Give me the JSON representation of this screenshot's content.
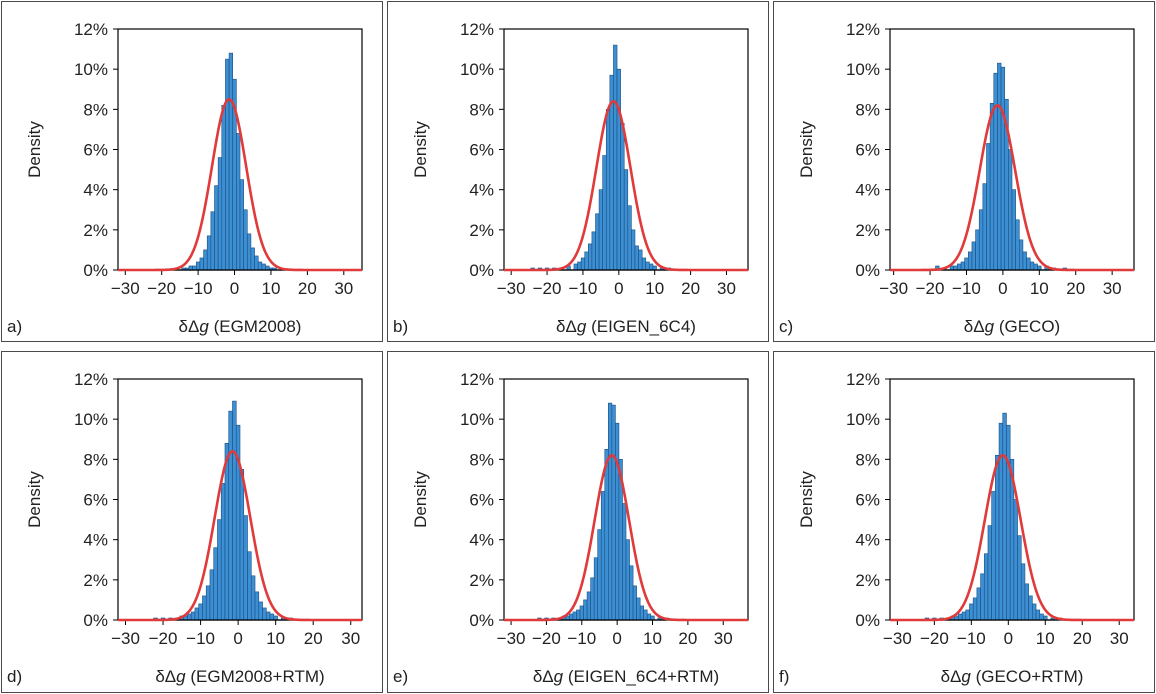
{
  "chart_data": [
    {
      "type": "bar",
      "panel_label": "a)",
      "xlabel_prefix": "δΔ",
      "xlabel_var": "g",
      "xlabel_suffix": " (EGM2008)",
      "ylabel": "Density",
      "xlim": [
        -32,
        35
      ],
      "ylim": [
        0,
        0.12
      ],
      "x_ticks": [
        "−30",
        "−20",
        "−10",
        "0",
        "10",
        "20",
        "30"
      ],
      "x_tick_values": [
        -30,
        -20,
        -10,
        0,
        10,
        20,
        30
      ],
      "y_ticks": [
        "0%",
        "2%",
        "4%",
        "6%",
        "8%",
        "10%",
        "12%"
      ],
      "y_tick_values": [
        0,
        0.02,
        0.04,
        0.06,
        0.08,
        0.1,
        0.12
      ],
      "bin_width": 1,
      "bins": [
        {
          "x": -14,
          "y": 0.001
        },
        {
          "x": -13,
          "y": 0.001
        },
        {
          "x": -12,
          "y": 0.002
        },
        {
          "x": -11,
          "y": 0.002
        },
        {
          "x": -10,
          "y": 0.004
        },
        {
          "x": -9,
          "y": 0.006
        },
        {
          "x": -8,
          "y": 0.01
        },
        {
          "x": -7,
          "y": 0.017
        },
        {
          "x": -6,
          "y": 0.029
        },
        {
          "x": -5,
          "y": 0.042
        },
        {
          "x": -4,
          "y": 0.056
        },
        {
          "x": -3,
          "y": 0.082
        },
        {
          "x": -2,
          "y": 0.105
        },
        {
          "x": -1,
          "y": 0.108
        },
        {
          "x": 0,
          "y": 0.095
        },
        {
          "x": 1,
          "y": 0.068
        },
        {
          "x": 2,
          "y": 0.045
        },
        {
          "x": 3,
          "y": 0.03
        },
        {
          "x": 4,
          "y": 0.018
        },
        {
          "x": 5,
          "y": 0.011
        },
        {
          "x": 6,
          "y": 0.007
        },
        {
          "x": 7,
          "y": 0.004
        },
        {
          "x": 8,
          "y": 0.003
        },
        {
          "x": 9,
          "y": 0.002
        },
        {
          "x": 10,
          "y": 0.001
        },
        {
          "x": 11,
          "y": 0.001
        }
      ],
      "fit": {
        "type": "normal",
        "mean": -1.5,
        "peak": 0.085
      }
    },
    {
      "type": "bar",
      "panel_label": "b)",
      "xlabel_prefix": "δΔ",
      "xlabel_var": "g",
      "xlabel_suffix": " (EIGEN_6C4)",
      "ylabel": "Density",
      "xlim": [
        -32,
        36
      ],
      "ylim": [
        0,
        0.12
      ],
      "x_ticks": [
        "−30",
        "−20",
        "−10",
        "0",
        "10",
        "20",
        "30"
      ],
      "x_tick_values": [
        -30,
        -20,
        -10,
        0,
        10,
        20,
        30
      ],
      "y_ticks": [
        "0%",
        "2%",
        "4%",
        "6%",
        "8%",
        "10%",
        "12%"
      ],
      "y_tick_values": [
        0,
        0.02,
        0.04,
        0.06,
        0.08,
        0.1,
        0.12
      ],
      "bin_width": 1,
      "bins": [
        {
          "x": -24,
          "y": 0.001
        },
        {
          "x": -22,
          "y": 0.001
        },
        {
          "x": -20,
          "y": 0.001
        },
        {
          "x": -18,
          "y": 0.001
        },
        {
          "x": -16,
          "y": 0.001
        },
        {
          "x": -14,
          "y": 0.002
        },
        {
          "x": -12,
          "y": 0.003
        },
        {
          "x": -11,
          "y": 0.004
        },
        {
          "x": -10,
          "y": 0.006
        },
        {
          "x": -9,
          "y": 0.009
        },
        {
          "x": -8,
          "y": 0.013
        },
        {
          "x": -7,
          "y": 0.019
        },
        {
          "x": -6,
          "y": 0.028
        },
        {
          "x": -5,
          "y": 0.04
        },
        {
          "x": -4,
          "y": 0.057
        },
        {
          "x": -3,
          "y": 0.08
        },
        {
          "x": -2,
          "y": 0.097
        },
        {
          "x": -1,
          "y": 0.112
        },
        {
          "x": 0,
          "y": 0.1
        },
        {
          "x": 1,
          "y": 0.073
        },
        {
          "x": 2,
          "y": 0.05
        },
        {
          "x": 3,
          "y": 0.032
        },
        {
          "x": 4,
          "y": 0.02
        },
        {
          "x": 5,
          "y": 0.012
        },
        {
          "x": 6,
          "y": 0.01
        },
        {
          "x": 7,
          "y": 0.006
        },
        {
          "x": 8,
          "y": 0.004
        },
        {
          "x": 9,
          "y": 0.003
        },
        {
          "x": 10,
          "y": 0.002
        },
        {
          "x": 12,
          "y": 0.001
        },
        {
          "x": 14,
          "y": 0.001
        }
      ],
      "fit": {
        "type": "normal",
        "mean": -1.5,
        "peak": 0.084
      }
    },
    {
      "type": "bar",
      "panel_label": "c)",
      "xlabel_prefix": "δΔ",
      "xlabel_var": "g",
      "xlabel_suffix": " (GECO)",
      "ylabel": "Density",
      "xlim": [
        -31,
        36
      ],
      "ylim": [
        0,
        0.12
      ],
      "x_ticks": [
        "−30",
        "−20",
        "−10",
        "0",
        "10",
        "20",
        "30"
      ],
      "x_tick_values": [
        -30,
        -20,
        -10,
        0,
        10,
        20,
        30
      ],
      "y_ticks": [
        "0%",
        "2%",
        "4%",
        "6%",
        "8%",
        "10%",
        "12%"
      ],
      "y_tick_values": [
        0,
        0.02,
        0.04,
        0.06,
        0.08,
        0.1,
        0.12
      ],
      "bin_width": 1,
      "bins": [
        {
          "x": -18,
          "y": 0.002
        },
        {
          "x": -16,
          "y": 0.001
        },
        {
          "x": -14,
          "y": 0.002
        },
        {
          "x": -13,
          "y": 0.002
        },
        {
          "x": -12,
          "y": 0.003
        },
        {
          "x": -11,
          "y": 0.004
        },
        {
          "x": -10,
          "y": 0.006
        },
        {
          "x": -9,
          "y": 0.009
        },
        {
          "x": -8,
          "y": 0.014
        },
        {
          "x": -7,
          "y": 0.02
        },
        {
          "x": -6,
          "y": 0.03
        },
        {
          "x": -5,
          "y": 0.043
        },
        {
          "x": -4,
          "y": 0.063
        },
        {
          "x": -3,
          "y": 0.083
        },
        {
          "x": -2,
          "y": 0.098
        },
        {
          "x": -1,
          "y": 0.103
        },
        {
          "x": 0,
          "y": 0.101
        },
        {
          "x": 1,
          "y": 0.085
        },
        {
          "x": 2,
          "y": 0.06
        },
        {
          "x": 3,
          "y": 0.04
        },
        {
          "x": 4,
          "y": 0.025
        },
        {
          "x": 5,
          "y": 0.015
        },
        {
          "x": 6,
          "y": 0.009
        },
        {
          "x": 7,
          "y": 0.006
        },
        {
          "x": 8,
          "y": 0.004
        },
        {
          "x": 9,
          "y": 0.003
        },
        {
          "x": 10,
          "y": 0.002
        },
        {
          "x": 12,
          "y": 0.002
        },
        {
          "x": 14,
          "y": 0.001
        },
        {
          "x": 17,
          "y": 0.001
        }
      ],
      "fit": {
        "type": "normal",
        "mean": -1.5,
        "peak": 0.082
      }
    },
    {
      "type": "bar",
      "panel_label": "d)",
      "xlabel_prefix": "δΔ",
      "xlabel_var": "g",
      "xlabel_suffix": " (EGM2008+RTM)",
      "ylabel": "Density",
      "xlim": [
        -32,
        33
      ],
      "ylim": [
        0,
        0.12
      ],
      "x_ticks": [
        "−30",
        "−20",
        "−10",
        "0",
        "10",
        "20",
        "30"
      ],
      "x_tick_values": [
        -30,
        -20,
        -10,
        0,
        10,
        20,
        30
      ],
      "y_ticks": [
        "0%",
        "2%",
        "4%",
        "6%",
        "8%",
        "10%",
        "12%"
      ],
      "y_tick_values": [
        0,
        0.02,
        0.04,
        0.06,
        0.08,
        0.1,
        0.12
      ],
      "bin_width": 1,
      "bins": [
        {
          "x": -22,
          "y": 0.001
        },
        {
          "x": -20,
          "y": 0.001
        },
        {
          "x": -18,
          "y": 0.001
        },
        {
          "x": -16,
          "y": 0.001
        },
        {
          "x": -15,
          "y": 0.002
        },
        {
          "x": -14,
          "y": 0.002
        },
        {
          "x": -13,
          "y": 0.003
        },
        {
          "x": -12,
          "y": 0.004
        },
        {
          "x": -11,
          "y": 0.006
        },
        {
          "x": -10,
          "y": 0.008
        },
        {
          "x": -9,
          "y": 0.012
        },
        {
          "x": -8,
          "y": 0.017
        },
        {
          "x": -7,
          "y": 0.025
        },
        {
          "x": -6,
          "y": 0.036
        },
        {
          "x": -5,
          "y": 0.05
        },
        {
          "x": -4,
          "y": 0.068
        },
        {
          "x": -3,
          "y": 0.088
        },
        {
          "x": -2,
          "y": 0.104
        },
        {
          "x": -1,
          "y": 0.109
        },
        {
          "x": 0,
          "y": 0.097
        },
        {
          "x": 1,
          "y": 0.075
        },
        {
          "x": 2,
          "y": 0.052
        },
        {
          "x": 3,
          "y": 0.034
        },
        {
          "x": 4,
          "y": 0.022
        },
        {
          "x": 5,
          "y": 0.014
        },
        {
          "x": 6,
          "y": 0.009
        },
        {
          "x": 7,
          "y": 0.006
        },
        {
          "x": 8,
          "y": 0.004
        },
        {
          "x": 9,
          "y": 0.003
        },
        {
          "x": 10,
          "y": 0.002
        },
        {
          "x": 12,
          "y": 0.001
        },
        {
          "x": 14,
          "y": 0.001
        }
      ],
      "fit": {
        "type": "normal",
        "mean": -1.5,
        "peak": 0.084
      }
    },
    {
      "type": "bar",
      "panel_label": "e)",
      "xlabel_prefix": "δΔ",
      "xlabel_var": "g",
      "xlabel_suffix": " (EIGEN_6C4+RTM)",
      "ylabel": "Density",
      "xlim": [
        -32,
        37
      ],
      "ylim": [
        0,
        0.12
      ],
      "x_ticks": [
        "−30",
        "−20",
        "−10",
        "0",
        "10",
        "20",
        "30"
      ],
      "x_tick_values": [
        -30,
        -20,
        -10,
        0,
        10,
        20,
        30
      ],
      "y_ticks": [
        "0%",
        "2%",
        "4%",
        "6%",
        "8%",
        "10%",
        "12%"
      ],
      "y_tick_values": [
        0,
        0.02,
        0.04,
        0.06,
        0.08,
        0.1,
        0.12
      ],
      "bin_width": 1,
      "bins": [
        {
          "x": -22,
          "y": 0.001
        },
        {
          "x": -20,
          "y": 0.001
        },
        {
          "x": -18,
          "y": 0.001
        },
        {
          "x": -16,
          "y": 0.001
        },
        {
          "x": -15,
          "y": 0.002
        },
        {
          "x": -14,
          "y": 0.002
        },
        {
          "x": -13,
          "y": 0.003
        },
        {
          "x": -12,
          "y": 0.004
        },
        {
          "x": -11,
          "y": 0.005
        },
        {
          "x": -10,
          "y": 0.007
        },
        {
          "x": -9,
          "y": 0.01
        },
        {
          "x": -8,
          "y": 0.014
        },
        {
          "x": -7,
          "y": 0.021
        },
        {
          "x": -6,
          "y": 0.031
        },
        {
          "x": -5,
          "y": 0.045
        },
        {
          "x": -4,
          "y": 0.064
        },
        {
          "x": -3,
          "y": 0.085
        },
        {
          "x": -2,
          "y": 0.108
        },
        {
          "x": -1,
          "y": 0.107
        },
        {
          "x": 0,
          "y": 0.098
        },
        {
          "x": 1,
          "y": 0.08
        },
        {
          "x": 2,
          "y": 0.058
        },
        {
          "x": 3,
          "y": 0.04
        },
        {
          "x": 4,
          "y": 0.027
        },
        {
          "x": 5,
          "y": 0.017
        },
        {
          "x": 6,
          "y": 0.011
        },
        {
          "x": 7,
          "y": 0.007
        },
        {
          "x": 8,
          "y": 0.005
        },
        {
          "x": 9,
          "y": 0.003
        },
        {
          "x": 10,
          "y": 0.002
        },
        {
          "x": 12,
          "y": 0.001
        },
        {
          "x": 14,
          "y": 0.001
        }
      ],
      "fit": {
        "type": "normal",
        "mean": -1.5,
        "peak": 0.082
      }
    },
    {
      "type": "bar",
      "panel_label": "f)",
      "xlabel_prefix": "δΔ",
      "xlabel_var": "g",
      "xlabel_suffix": " (GECO+RTM)",
      "ylabel": "Density",
      "xlim": [
        -32,
        34
      ],
      "ylim": [
        0,
        0.12
      ],
      "x_ticks": [
        "−30",
        "−20",
        "−10",
        "0",
        "10",
        "20",
        "30"
      ],
      "x_tick_values": [
        -30,
        -20,
        -10,
        0,
        10,
        20,
        30
      ],
      "y_ticks": [
        "0%",
        "2%",
        "4%",
        "6%",
        "8%",
        "10%",
        "12%"
      ],
      "y_tick_values": [
        0,
        0.02,
        0.04,
        0.06,
        0.08,
        0.1,
        0.12
      ],
      "bin_width": 1,
      "bins": [
        {
          "x": -22,
          "y": 0.001
        },
        {
          "x": -20,
          "y": 0.001
        },
        {
          "x": -18,
          "y": 0.001
        },
        {
          "x": -16,
          "y": 0.001
        },
        {
          "x": -15,
          "y": 0.002
        },
        {
          "x": -14,
          "y": 0.002
        },
        {
          "x": -13,
          "y": 0.003
        },
        {
          "x": -12,
          "y": 0.004
        },
        {
          "x": -11,
          "y": 0.005
        },
        {
          "x": -10,
          "y": 0.008
        },
        {
          "x": -9,
          "y": 0.011
        },
        {
          "x": -8,
          "y": 0.016
        },
        {
          "x": -7,
          "y": 0.023
        },
        {
          "x": -6,
          "y": 0.033
        },
        {
          "x": -5,
          "y": 0.047
        },
        {
          "x": -4,
          "y": 0.064
        },
        {
          "x": -3,
          "y": 0.082
        },
        {
          "x": -2,
          "y": 0.098
        },
        {
          "x": -1,
          "y": 0.103
        },
        {
          "x": 0,
          "y": 0.097
        },
        {
          "x": 1,
          "y": 0.08
        },
        {
          "x": 2,
          "y": 0.06
        },
        {
          "x": 3,
          "y": 0.042
        },
        {
          "x": 4,
          "y": 0.028
        },
        {
          "x": 5,
          "y": 0.018
        },
        {
          "x": 6,
          "y": 0.012
        },
        {
          "x": 7,
          "y": 0.008
        },
        {
          "x": 8,
          "y": 0.005
        },
        {
          "x": 9,
          "y": 0.003
        },
        {
          "x": 10,
          "y": 0.002
        },
        {
          "x": 12,
          "y": 0.001
        },
        {
          "x": 14,
          "y": 0.001
        }
      ],
      "fit": {
        "type": "normal",
        "mean": -1.5,
        "peak": 0.082
      }
    }
  ],
  "colors": {
    "bar_fill": "#3d8fd4",
    "bar_stroke": "#1a4e80",
    "fit_line": "#e03a3a",
    "axis": "#000000",
    "panel_border": "#4a4a4a"
  }
}
